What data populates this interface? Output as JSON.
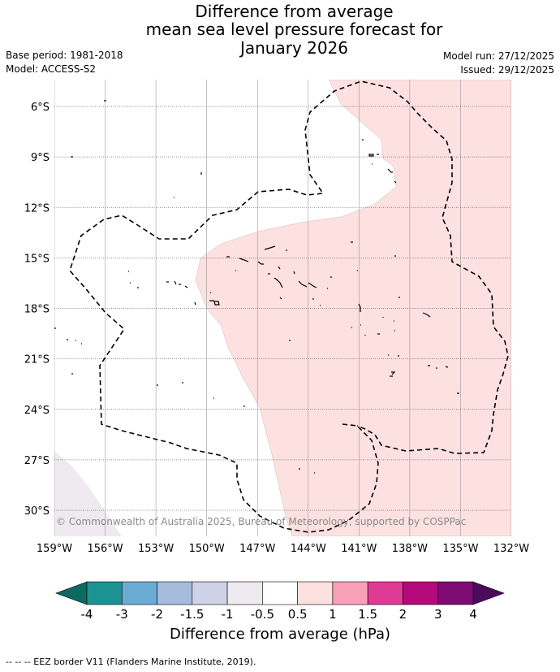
{
  "title": {
    "line1": "Difference from average",
    "line2": "mean sea level pressure forecast for",
    "line3": "January 2026"
  },
  "meta": {
    "base_period": "Base period: 1981-2018",
    "model": "Model: ACCESS-S2",
    "model_run": "Model run: 27/12/2025",
    "issued": "Issued: 29/12/2025"
  },
  "map": {
    "lat_labels": [
      "6°S",
      "9°S",
      "12°S",
      "15°S",
      "18°S",
      "21°S",
      "24°S",
      "27°S",
      "30°S"
    ],
    "lat_values": [
      -6,
      -9,
      -12,
      -15,
      -18,
      -21,
      -24,
      -27,
      -30
    ],
    "lon_labels": [
      "159°W",
      "156°W",
      "153°W",
      "150°W",
      "147°W",
      "144°W",
      "141°W",
      "138°W",
      "135°W",
      "132°W"
    ],
    "lon_values": [
      -159,
      -156,
      -153,
      -150,
      -147,
      -144,
      -141,
      -138,
      -135,
      -132
    ],
    "copyright": "© Commonwealth of Australia 2025, Bureau of Meteorology, supported by COSPPac",
    "colors": {
      "positive_0_5_1": "#fde0e0",
      "negative_0_5_1": "#efe9f0",
      "ocean": "#ffffff",
      "grid": "#9a9a9a"
    }
  },
  "colorbar": {
    "ticks": [
      "-4",
      "-3",
      "-2",
      "-1.5",
      "-1",
      "-0.5",
      "0.5",
      "1",
      "1.5",
      "2",
      "3",
      "4"
    ],
    "colors": [
      "#1b9393",
      "#6aabd3",
      "#a6bcdd",
      "#cfd1e6",
      "#efe9f0",
      "#ffffff",
      "#fde0e0",
      "#f7a0b8",
      "#df3a96",
      "#b40a7a",
      "#7e0a74"
    ],
    "under_color": "#0c6a60",
    "over_color": "#4b0a5c",
    "label": "Difference from average (hPa)"
  },
  "footnote": "--  --  -- EEZ border V11 (Flanders Marine Institute, 2019)."
}
